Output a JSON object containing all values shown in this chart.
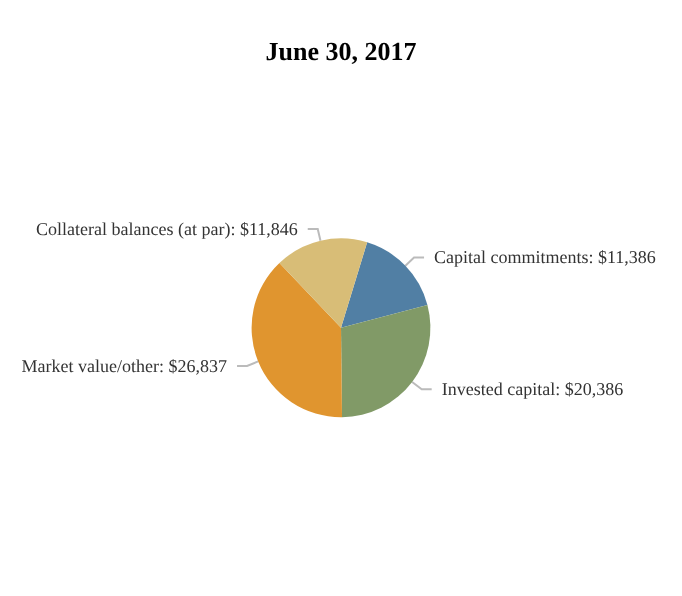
{
  "chart_data": {
    "type": "pie",
    "title": "June 30, 2017",
    "categories": [
      "Capital commitments",
      "Invested capital",
      "Market value/other",
      "Collateral balances (at par)"
    ],
    "values": [
      11386,
      20386,
      26837,
      11846
    ],
    "value_labels": [
      "$11,386",
      "$20,386",
      "$26,837",
      "$11,846"
    ],
    "colors": [
      "#517fa4",
      "#819a67",
      "#e0952f",
      "#d8bd77"
    ],
    "legend": false
  }
}
